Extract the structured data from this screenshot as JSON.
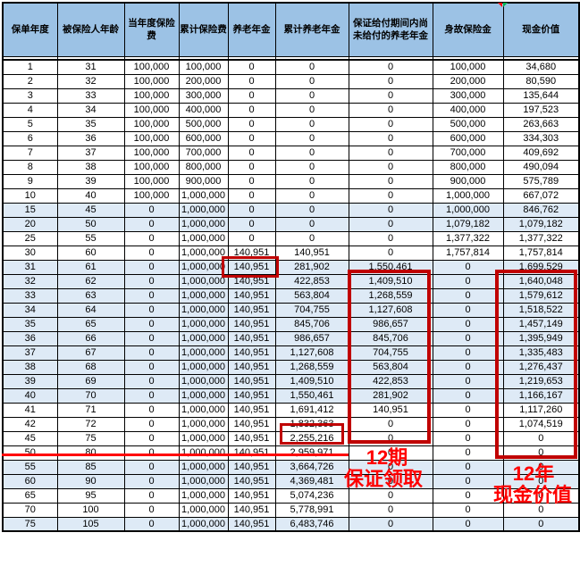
{
  "colors": {
    "header_bg": "#9CC2E5",
    "shaded_row_bg": "#DEEAF6",
    "grid": "#000000",
    "highlight_box": "#C00000",
    "annotation_red": "#FF0000",
    "marker_green": "#00B050"
  },
  "table": {
    "columns": [
      {
        "key": "policy-year",
        "label": "保单年度"
      },
      {
        "key": "insured-age",
        "label": "被保险人年龄"
      },
      {
        "key": "annual-premium",
        "label": "当年度保险费"
      },
      {
        "key": "cumulative-premium",
        "label": "累计保险费"
      },
      {
        "key": "pension-annuity",
        "label": "养老年金"
      },
      {
        "key": "cumulative-pension-annuity",
        "label": "累计养老年金"
      },
      {
        "key": "guaranteed-unpaid-annuity",
        "label": "保证给付期间内尚\n未给付的养老年金"
      },
      {
        "key": "death-benefit",
        "label": "身故保险金"
      },
      {
        "key": "cash-value",
        "label": "现金价值"
      }
    ],
    "rows": [
      [
        "1",
        "31",
        "100,000",
        "100,000",
        "0",
        "0",
        "0",
        "100,000",
        "34,680"
      ],
      [
        "2",
        "32",
        "100,000",
        "200,000",
        "0",
        "0",
        "0",
        "200,000",
        "80,590"
      ],
      [
        "3",
        "33",
        "100,000",
        "300,000",
        "0",
        "0",
        "0",
        "300,000",
        "135,644"
      ],
      [
        "4",
        "34",
        "100,000",
        "400,000",
        "0",
        "0",
        "0",
        "400,000",
        "197,523"
      ],
      [
        "5",
        "35",
        "100,000",
        "500,000",
        "0",
        "0",
        "0",
        "500,000",
        "263,663"
      ],
      [
        "6",
        "36",
        "100,000",
        "600,000",
        "0",
        "0",
        "0",
        "600,000",
        "334,303"
      ],
      [
        "7",
        "37",
        "100,000",
        "700,000",
        "0",
        "0",
        "0",
        "700,000",
        "409,692"
      ],
      [
        "8",
        "38",
        "100,000",
        "800,000",
        "0",
        "0",
        "0",
        "800,000",
        "490,094"
      ],
      [
        "9",
        "39",
        "100,000",
        "900,000",
        "0",
        "0",
        "0",
        "900,000",
        "575,789"
      ],
      [
        "10",
        "40",
        "100,000",
        "1,000,000",
        "0",
        "0",
        "0",
        "1,000,000",
        "667,072"
      ],
      [
        "15",
        "45",
        "0",
        "1,000,000",
        "0",
        "0",
        "0",
        "1,000,000",
        "846,762"
      ],
      [
        "20",
        "50",
        "0",
        "1,000,000",
        "0",
        "0",
        "0",
        "1,079,182",
        "1,079,182"
      ],
      [
        "25",
        "55",
        "0",
        "1,000,000",
        "0",
        "0",
        "0",
        "1,377,322",
        "1,377,322"
      ],
      [
        "30",
        "60",
        "0",
        "1,000,000",
        "140,951",
        "140,951",
        "0",
        "1,757,814",
        "1,757,814"
      ],
      [
        "31",
        "61",
        "0",
        "1,000,000",
        "140,951",
        "281,902",
        "1,550,461",
        "0",
        "1,699,529"
      ],
      [
        "32",
        "62",
        "0",
        "1,000,000",
        "140,951",
        "422,853",
        "1,409,510",
        "0",
        "1,640,048"
      ],
      [
        "33",
        "63",
        "0",
        "1,000,000",
        "140,951",
        "563,804",
        "1,268,559",
        "0",
        "1,579,612"
      ],
      [
        "34",
        "64",
        "0",
        "1,000,000",
        "140,951",
        "704,755",
        "1,127,608",
        "0",
        "1,518,522"
      ],
      [
        "35",
        "65",
        "0",
        "1,000,000",
        "140,951",
        "845,706",
        "986,657",
        "0",
        "1,457,149"
      ],
      [
        "36",
        "66",
        "0",
        "1,000,000",
        "140,951",
        "986,657",
        "845,706",
        "0",
        "1,395,949"
      ],
      [
        "37",
        "67",
        "0",
        "1,000,000",
        "140,951",
        "1,127,608",
        "704,755",
        "0",
        "1,335,483"
      ],
      [
        "38",
        "68",
        "0",
        "1,000,000",
        "140,951",
        "1,268,559",
        "563,804",
        "0",
        "1,276,437"
      ],
      [
        "39",
        "69",
        "0",
        "1,000,000",
        "140,951",
        "1,409,510",
        "422,853",
        "0",
        "1,219,653"
      ],
      [
        "40",
        "70",
        "0",
        "1,000,000",
        "140,951",
        "1,550,461",
        "281,902",
        "0",
        "1,166,167"
      ],
      [
        "41",
        "71",
        "0",
        "1,000,000",
        "140,951",
        "1,691,412",
        "140,951",
        "0",
        "1,117,260"
      ],
      [
        "42",
        "72",
        "0",
        "1,000,000",
        "140,951",
        "1,832,363",
        "0",
        "0",
        "1,074,519"
      ],
      [
        "45",
        "75",
        "0",
        "1,000,000",
        "140,951",
        "2,255,216",
        "0",
        "0",
        "0"
      ],
      [
        "50",
        "80",
        "0",
        "1,000,000",
        "140,951",
        "2,959,971",
        "0",
        "0",
        "0"
      ],
      [
        "55",
        "85",
        "0",
        "1,000,000",
        "140,951",
        "3,664,726",
        "0",
        "0",
        "0"
      ],
      [
        "60",
        "90",
        "0",
        "1,000,000",
        "140,951",
        "4,369,481",
        "0",
        "0",
        "0"
      ],
      [
        "65",
        "95",
        "0",
        "1,000,000",
        "140,951",
        "5,074,236",
        "0",
        "0",
        "0"
      ],
      [
        "70",
        "100",
        "0",
        "1,000,000",
        "140,951",
        "5,778,991",
        "0",
        "0",
        "0"
      ],
      [
        "75",
        "105",
        "0",
        "1,000,000",
        "140,951",
        "6,483,746",
        "0",
        "0",
        "0"
      ]
    ],
    "shaded_row_indices": [
      10,
      11,
      14,
      15,
      16,
      17,
      18,
      19,
      20,
      21,
      22,
      23,
      28,
      29,
      32
    ]
  },
  "annotations": {
    "guaranteed_note": {
      "line1": "12期",
      "line2": "保证领取"
    },
    "cash_note": {
      "line1": "12年",
      "line2": "现金价值"
    }
  }
}
